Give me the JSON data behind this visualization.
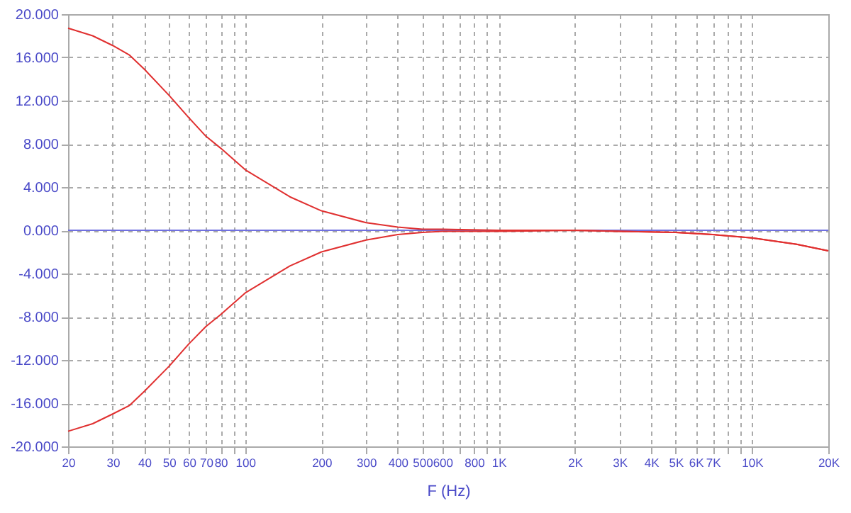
{
  "chart_data": {
    "type": "line",
    "xlabel": "F (Hz)",
    "log": "x",
    "grid": true,
    "line_style": "solid",
    "xlim": [
      20,
      20000
    ],
    "xticks": [
      20,
      30,
      40,
      50,
      60,
      70,
      80,
      {
        "value": 90,
        "label": null
      },
      100,
      200,
      300,
      400,
      500,
      600,
      {
        "value": 700,
        "label": null
      },
      800,
      {
        "value": 900,
        "label": null
      },
      {
        "value": 1000,
        "label": "1K"
      },
      {
        "value": 2000,
        "label": "2K"
      },
      {
        "value": 3000,
        "label": "3K"
      },
      {
        "value": 4000,
        "label": "4K"
      },
      {
        "value": 5000,
        "label": "5K"
      },
      {
        "value": 6000,
        "label": "6K"
      },
      {
        "value": 7000,
        "label": "7K"
      },
      {
        "value": 8000,
        "label": null
      },
      {
        "value": 9000,
        "label": null
      },
      {
        "value": 10000,
        "label": "10K"
      },
      {
        "value": 20000,
        "label": "20K"
      }
    ],
    "ylim": [
      -20,
      20
    ],
    "yticks": [
      {
        "value": -20,
        "label": "-20.000"
      },
      {
        "value": -16,
        "label": "-16.000"
      },
      {
        "value": -12,
        "label": "-12.000"
      },
      {
        "value": -8,
        "label": "-8.000"
      },
      {
        "value": -4,
        "label": "-4.000"
      },
      {
        "value": 0,
        "label": "0.000"
      },
      {
        "value": 4,
        "label": "4.000"
      },
      {
        "value": 8,
        "label": "8.000"
      },
      {
        "value": 12,
        "label": "12.000"
      },
      {
        "value": 16,
        "label": "16.000"
      },
      {
        "value": 20,
        "label": "20.000"
      }
    ],
    "series": [
      {
        "color": "#7070e0",
        "x": [
          20,
          20000
        ],
        "values": [
          0,
          0
        ]
      },
      {
        "color": "#e03030",
        "x": [
          20,
          25,
          30,
          35,
          40,
          50,
          60,
          70,
          80,
          100,
          150,
          200,
          300,
          400,
          500,
          600,
          1000,
          2000,
          3000,
          5000,
          7000,
          10000,
          15000,
          20000
        ],
        "values": [
          18.7,
          18,
          17.1,
          16.2,
          14.9,
          12.5,
          10.4,
          8.7,
          7.6,
          5.6,
          3.1,
          1.8,
          0.7,
          0.3,
          0.1,
          0.1,
          0,
          0,
          -0.1,
          -0.2,
          -0.4,
          -0.7,
          -1.3,
          -1.9
        ]
      },
      {
        "color": "#e03030",
        "x": [
          20,
          25,
          30,
          35,
          40,
          50,
          60,
          70,
          80,
          100,
          150,
          200,
          300,
          400,
          500,
          600,
          1000,
          2000,
          3000,
          5000,
          7000,
          10000,
          15000,
          20000
        ],
        "values": [
          -18.6,
          -17.9,
          -17,
          -16.2,
          -14.9,
          -12.6,
          -10.5,
          -8.9,
          -7.8,
          -5.8,
          -3.3,
          -2,
          -0.9,
          -0.4,
          -0.2,
          -0.1,
          -0.1,
          0,
          -0.1,
          -0.2,
          -0.4,
          -0.7,
          -1.3,
          -1.9
        ]
      }
    ]
  }
}
